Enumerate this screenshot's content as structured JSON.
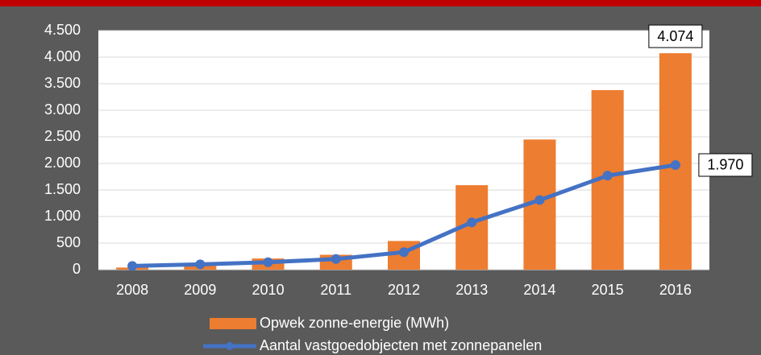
{
  "chart_data": {
    "type": "bar_line",
    "categories": [
      "2008",
      "2009",
      "2010",
      "2011",
      "2012",
      "2013",
      "2014",
      "2015",
      "2016"
    ],
    "series": [
      {
        "name": "Opwek zonne-energie (MWh)",
        "type": "bar",
        "color": "#ed7d31",
        "values": [
          40,
          70,
          210,
          280,
          540,
          1590,
          2450,
          3380,
          4074
        ],
        "value_labels": [
          null,
          null,
          null,
          null,
          null,
          null,
          null,
          null,
          "4.074"
        ]
      },
      {
        "name": "Aantal vastgoedobjecten met zonnepanelen",
        "type": "line",
        "color": "#4472c4",
        "values": [
          70,
          100,
          140,
          200,
          330,
          890,
          1310,
          1770,
          1970
        ],
        "value_labels": [
          null,
          null,
          null,
          null,
          null,
          null,
          null,
          null,
          "1.970"
        ]
      }
    ],
    "ylim": [
      0,
      4500
    ],
    "yticks": [
      0,
      500,
      {
        "value": 1000,
        "label": "1.000"
      },
      {
        "value": 1500,
        "label": "1.500"
      },
      {
        "value": 2000,
        "label": "2.000"
      },
      {
        "value": 2500,
        "label": "2.500"
      },
      {
        "value": 3000,
        "label": "3.000"
      },
      {
        "value": 3500,
        "label": "3.500"
      },
      {
        "value": 4000,
        "label": "4.000"
      },
      {
        "value": 4500,
        "label": "4.500"
      }
    ],
    "grid": true
  }
}
